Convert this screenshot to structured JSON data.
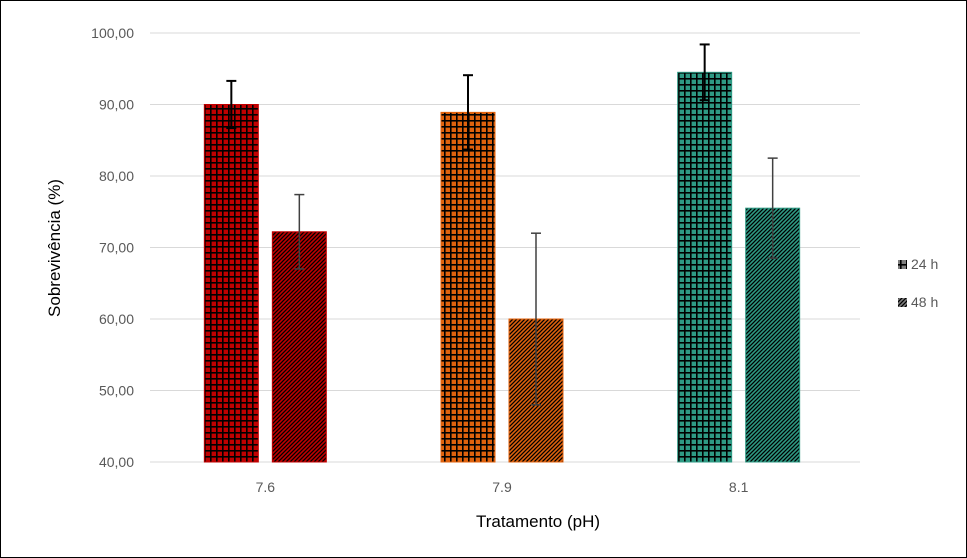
{
  "chart_data": {
    "type": "bar",
    "title": "",
    "xlabel": "Tratamento (pH)",
    "ylabel": "Sobrevivência (%)",
    "categories": [
      "7.6",
      "7.9",
      "8.1"
    ],
    "ylim": [
      40,
      100
    ],
    "yticks": [
      "40,00",
      "50,00",
      "60,00",
      "70,00",
      "80,00",
      "90,00",
      "100,00"
    ],
    "grid": true,
    "legend_position": "right",
    "series": [
      {
        "name": "24 h",
        "pattern": "grid",
        "values": [
          90.0,
          88.9,
          94.5
        ],
        "errors": [
          3.3,
          5.2,
          3.9
        ]
      },
      {
        "name": "48 h",
        "pattern": "diagonal",
        "values": [
          72.2,
          60.0,
          75.5
        ],
        "errors": [
          5.2,
          12.0,
          7.0
        ]
      }
    ],
    "category_colors": [
      "#c00000",
      "#e0620d",
      "#2e9a84"
    ]
  }
}
